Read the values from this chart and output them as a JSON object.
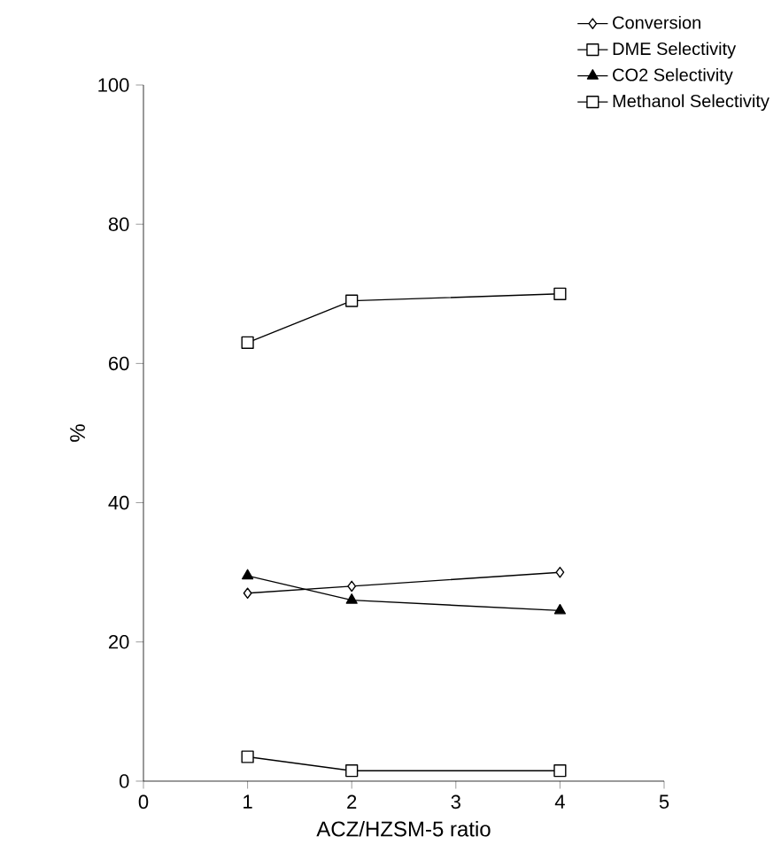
{
  "chart_data": {
    "type": "line",
    "xlabel": "ACZ/HZSM-5 ratio",
    "ylabel": "%",
    "x": [
      1,
      2,
      4
    ],
    "series": [
      {
        "name": "Conversion",
        "color": "#000000",
        "marker": "diamond",
        "values": [
          27,
          28,
          30
        ]
      },
      {
        "name": "DME Selectivity",
        "color": "#000000",
        "marker": "square",
        "values": [
          63,
          69,
          70
        ]
      },
      {
        "name": "CO2 Selectivity",
        "color": "#000000",
        "marker": "triangle",
        "values": [
          29.5,
          26,
          24.5
        ]
      },
      {
        "name": "Methanol Selectivity",
        "color": "#000000",
        "marker": "square",
        "values": [
          3.5,
          1.5,
          1.5
        ]
      }
    ],
    "xlim": [
      0,
      5
    ],
    "ylim": [
      0,
      100
    ],
    "xticks": [
      0,
      1,
      2,
      3,
      4,
      5
    ],
    "yticks": [
      0,
      20,
      40,
      60,
      80,
      100
    ],
    "grid": false,
    "legend": "top right",
    "line_style": "solid"
  }
}
